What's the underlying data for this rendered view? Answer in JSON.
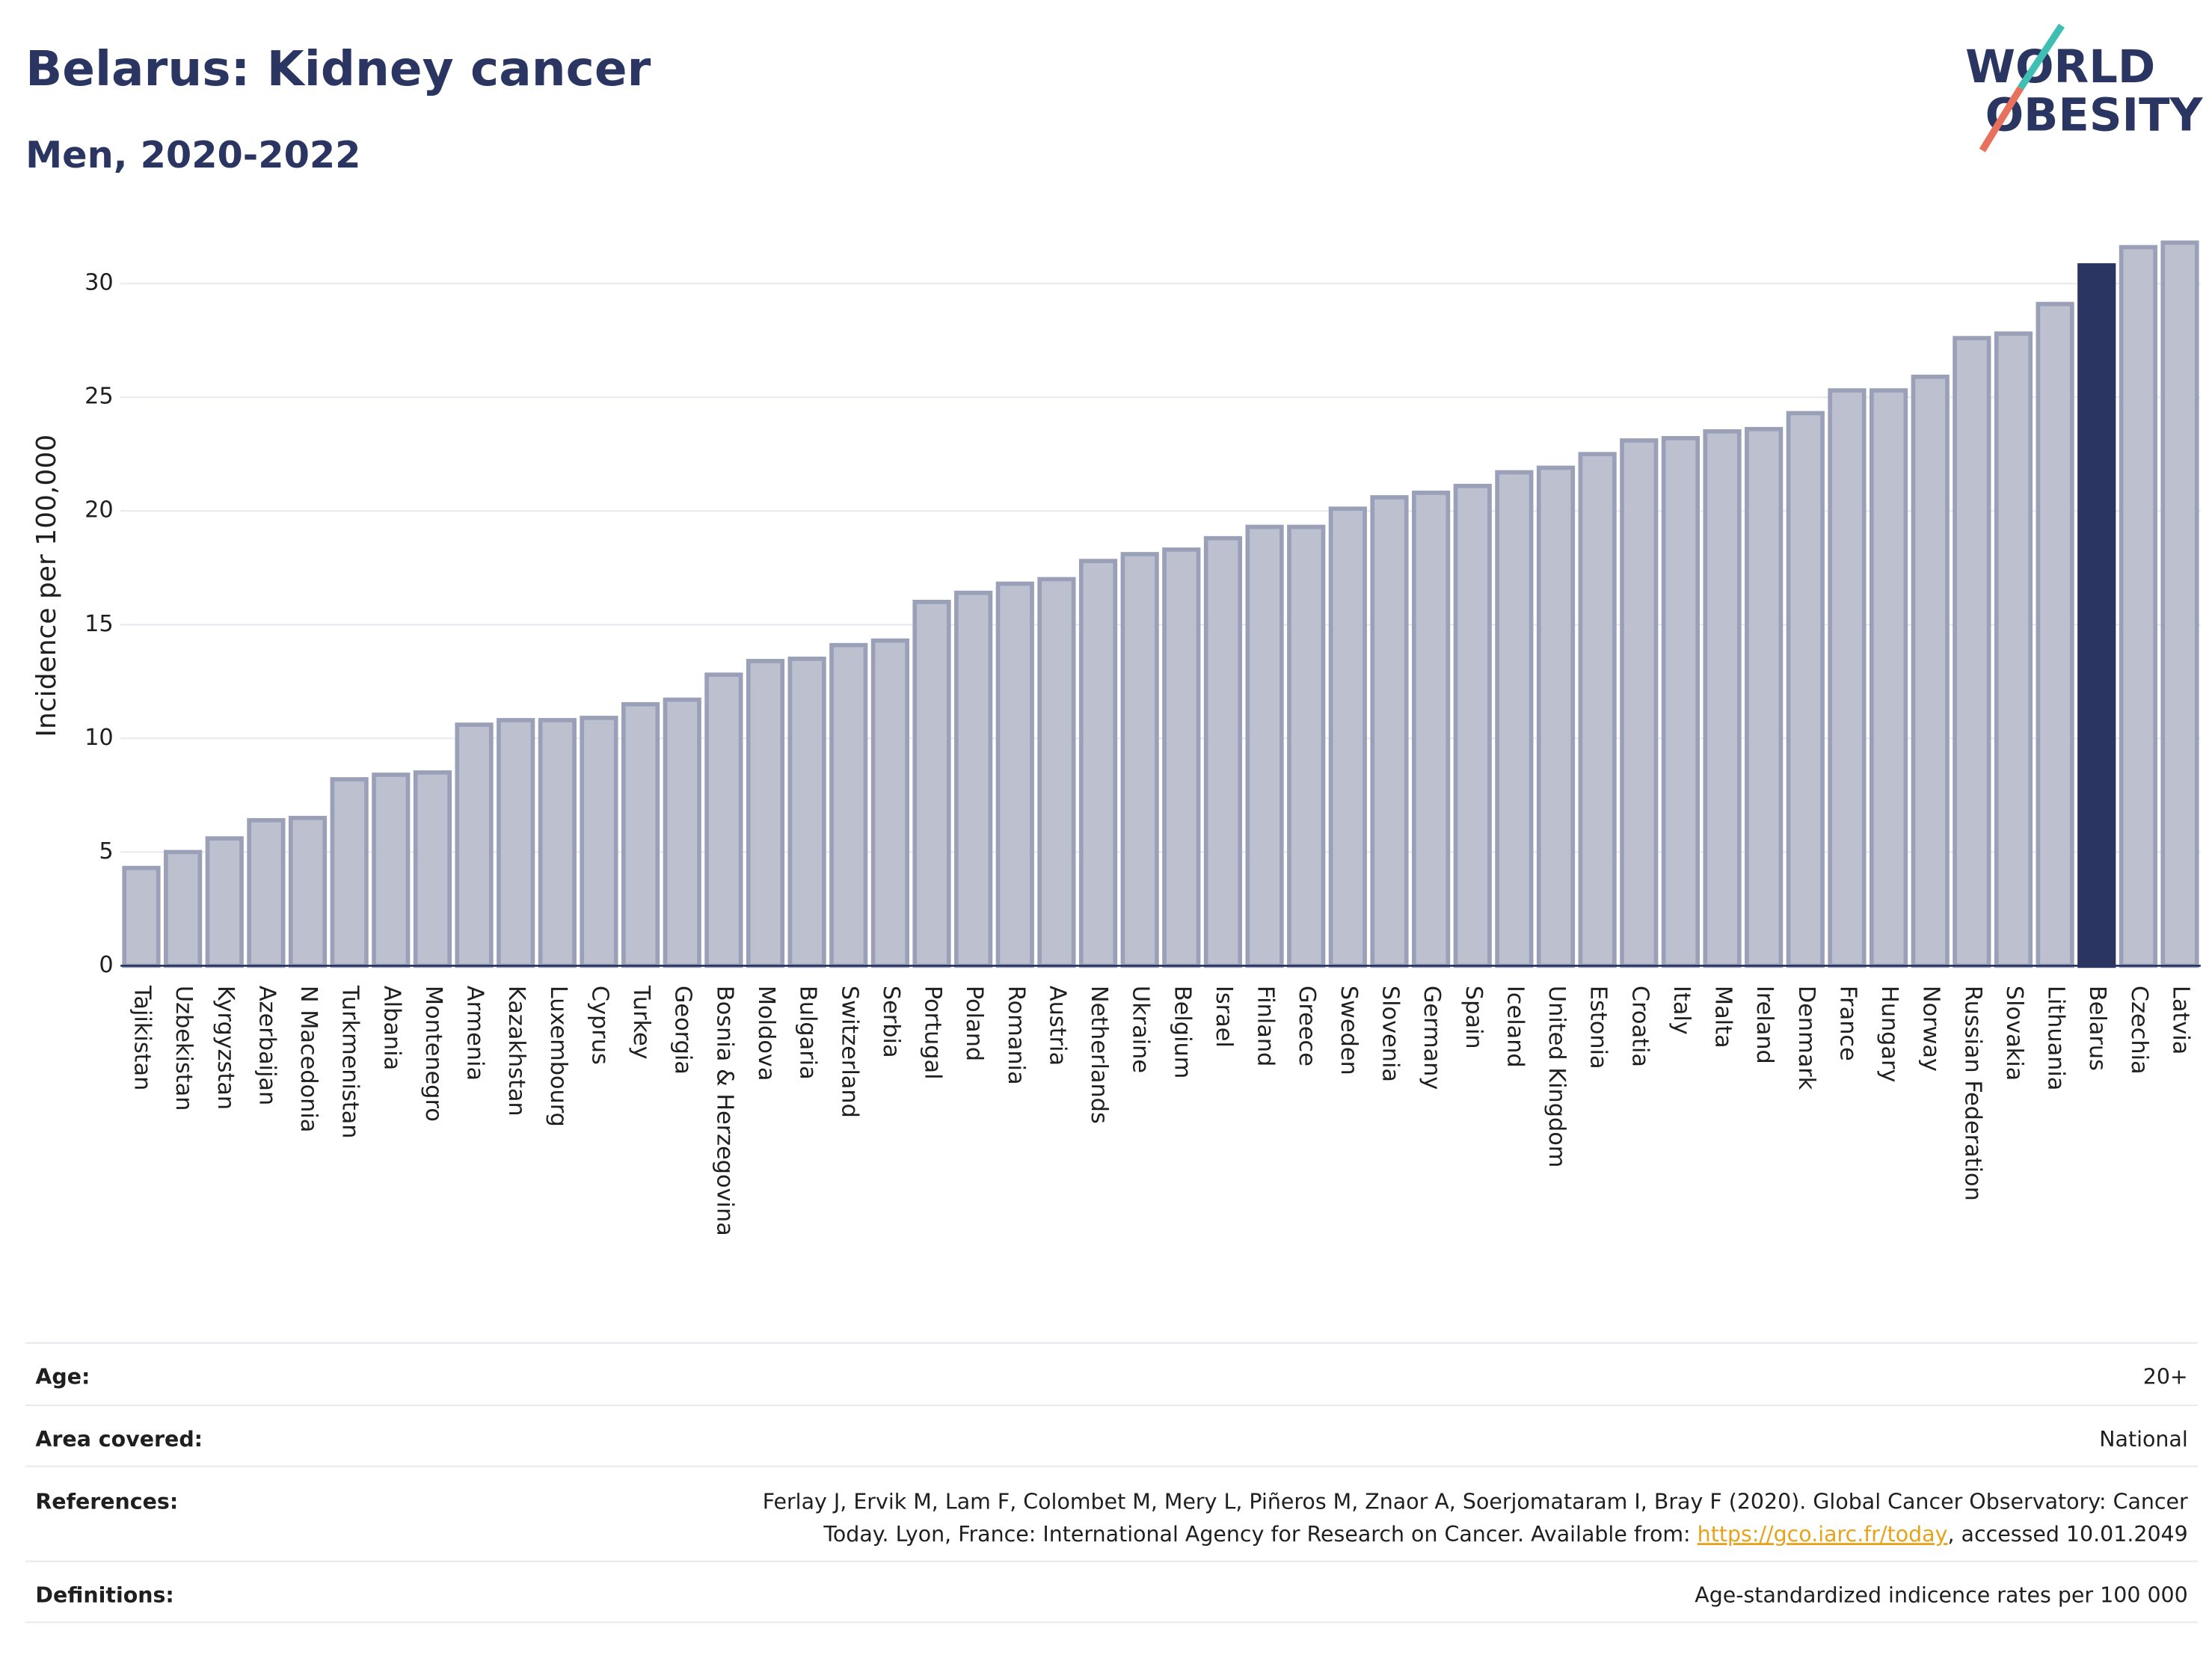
{
  "chart_data": {
    "type": "bar",
    "title": "Belarus: Kidney cancer",
    "subtitle": "Men, 2020-2022",
    "y_label": "Incidence per 100,000",
    "categories": [
      "Tajikistan",
      "Uzbekistan",
      "Kyrgyzstan",
      "Azerbaijan",
      "N Macedonia",
      "Turkmenistan",
      "Albania",
      "Montenegro",
      "Armenia",
      "Kazakhstan",
      "Luxembourg",
      "Cyprus",
      "Turkey",
      "Georgia",
      "Bosnia & Herzegovina",
      "Moldova",
      "Bulgaria",
      "Switzerland",
      "Serbia",
      "Portugal",
      "Poland",
      "Romania",
      "Austria",
      "Netherlands",
      "Ukraine",
      "Belgium",
      "Israel",
      "Finland",
      "Greece",
      "Sweden",
      "Slovenia",
      "Germany",
      "Spain",
      "Iceland",
      "United Kingdom",
      "Estonia",
      "Croatia",
      "Italy",
      "Malta",
      "Ireland",
      "Denmark",
      "France",
      "Hungary",
      "Norway",
      "Russian Federation",
      "Slovakia",
      "Lithuania",
      "Belarus",
      "Czechia",
      "Latvia"
    ],
    "values": [
      4.3,
      5.0,
      5.6,
      6.4,
      6.5,
      8.2,
      8.4,
      8.5,
      10.6,
      10.8,
      10.8,
      10.9,
      11.5,
      11.7,
      12.8,
      13.4,
      13.5,
      14.1,
      14.3,
      16.0,
      16.4,
      16.8,
      17.0,
      17.8,
      18.1,
      18.3,
      18.8,
      19.3,
      19.3,
      20.1,
      20.6,
      20.8,
      21.1,
      21.7,
      21.9,
      22.5,
      23.1,
      23.2,
      23.5,
      23.6,
      24.3,
      25.3,
      25.3,
      25.9,
      27.6,
      27.8,
      29.1,
      30.8,
      31.6,
      31.8
    ],
    "colors": [
      "#bcc0cf",
      "#bcc0cf",
      "#bcc0cf",
      "#bcc0cf",
      "#bcc0cf",
      "#bcc0cf",
      "#bcc0cf",
      "#bcc0cf",
      "#bcc0cf",
      "#bcc0cf",
      "#bcc0cf",
      "#bcc0cf",
      "#bcc0cf",
      "#bcc0cf",
      "#bcc0cf",
      "#bcc0cf",
      "#bcc0cf",
      "#bcc0cf",
      "#bcc0cf",
      "#bcc0cf",
      "#bcc0cf",
      "#bcc0cf",
      "#bcc0cf",
      "#bcc0cf",
      "#bcc0cf",
      "#bcc0cf",
      "#bcc0cf",
      "#bcc0cf",
      "#bcc0cf",
      "#bcc0cf",
      "#bcc0cf",
      "#bcc0cf",
      "#bcc0cf",
      "#bcc0cf",
      "#bcc0cf",
      "#bcc0cf",
      "#bcc0cf",
      "#bcc0cf",
      "#bcc0cf",
      "#bcc0cf",
      "#bcc0cf",
      "#bcc0cf",
      "#bcc0cf",
      "#bcc0cf",
      "#bcc0cf",
      "#bcc0cf",
      "#bcc0cf",
      "#2a3561",
      "#bcc0cf",
      "#bcc0cf"
    ],
    "ylim": [
      0,
      32.8
    ],
    "yticks": [
      0,
      5,
      10,
      15,
      20,
      25,
      30
    ],
    "grid": true
  },
  "logo": {
    "line1": "WORLD",
    "line2": "OBESITY"
  },
  "footer": {
    "age": {
      "label": "Age:",
      "value": "20+"
    },
    "area": {
      "label": "Area covered:",
      "value": "National"
    },
    "references": {
      "label": "References:",
      "line1": "Ferlay J, Ervik M, Lam F, Colombet M, Mery L, Piñeros M, Znaor A, Soerjomataram I, Bray F (2020). Global Cancer Observatory: Cancer",
      "line2_before": "Today. Lyon, France: International Agency for Research on Cancer. Available from: ",
      "link": "https://gco.iarc.fr/today",
      "line2_after": ", accessed 10.01.2049"
    },
    "definitions": {
      "label": "Definitions:",
      "value": "Age-standardized indicence rates per 100 000"
    }
  }
}
